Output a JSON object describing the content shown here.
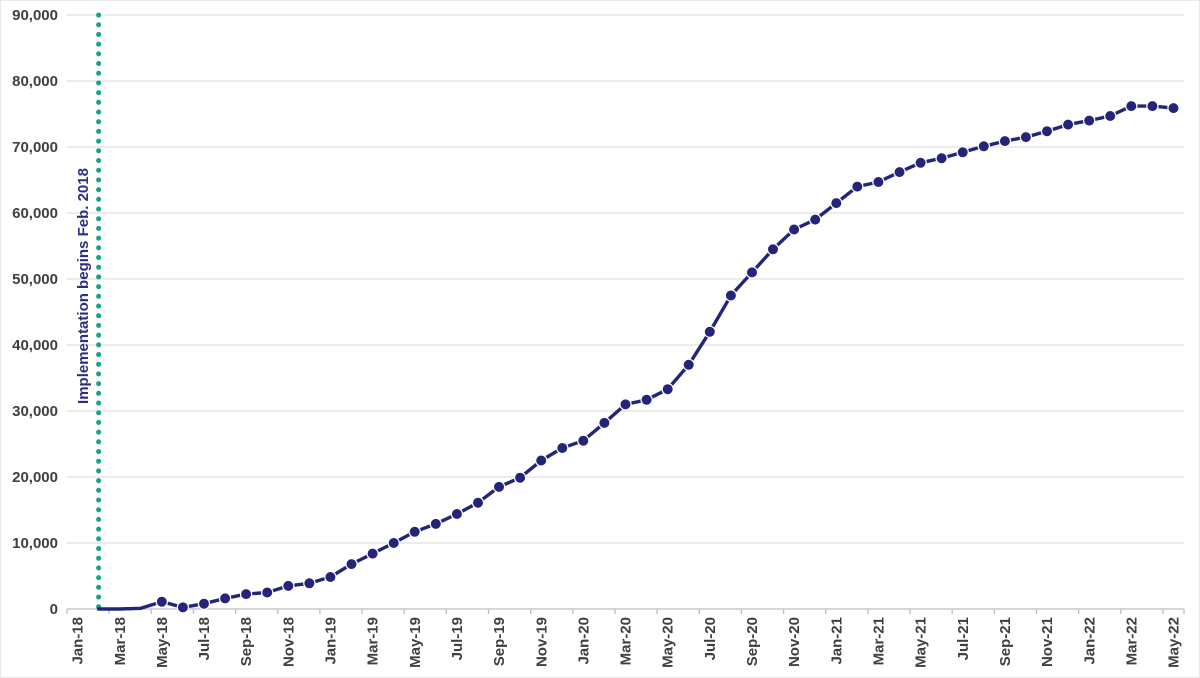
{
  "chart_data": {
    "type": "line",
    "title": "",
    "legend": "none",
    "grid": "horizontal",
    "ylim": [
      0,
      90000
    ],
    "y_tick_step": 10000,
    "y_tick_labels": [
      "0",
      "10,000",
      "20,000",
      "30,000",
      "40,000",
      "50,000",
      "60,000",
      "70,000",
      "80,000",
      "90,000"
    ],
    "x": [
      "Jan-18",
      "Feb-18",
      "Mar-18",
      "Apr-18",
      "May-18",
      "Jun-18",
      "Jul-18",
      "Aug-18",
      "Sep-18",
      "Oct-18",
      "Nov-18",
      "Dec-18",
      "Jan-19",
      "Feb-19",
      "Mar-19",
      "Apr-19",
      "May-19",
      "Jun-19",
      "Jul-19",
      "Aug-19",
      "Sep-19",
      "Oct-19",
      "Nov-19",
      "Dec-19",
      "Jan-20",
      "Feb-20",
      "Mar-20",
      "Apr-20",
      "May-20",
      "Jun-20",
      "Jul-20",
      "Aug-20",
      "Sep-20",
      "Oct-20",
      "Nov-20",
      "Dec-20",
      "Jan-21",
      "Feb-21",
      "Mar-21",
      "Apr-21",
      "May-21",
      "Jun-21",
      "Jul-21",
      "Aug-21",
      "Sep-21",
      "Oct-21",
      "Nov-21",
      "Dec-21",
      "Jan-22",
      "Feb-22",
      "Mar-22",
      "Apr-22",
      "May-22"
    ],
    "x_tick_labels": [
      "Jan-18",
      "Mar-18",
      "May-18",
      "Jul-18",
      "Sep-18",
      "Nov-18",
      "Jan-19",
      "Mar-19",
      "May-19",
      "Jul-19",
      "Sep-19",
      "Nov-19",
      "Jan-20",
      "Mar-20",
      "May-20",
      "Jul-20",
      "Sep-20",
      "Nov-20",
      "Jan-21",
      "Mar-21",
      "May-21",
      "Jul-21",
      "Sep-21",
      "Nov-21",
      "Jan-22",
      "Mar-22",
      "May-22"
    ],
    "values": [
      null,
      0,
      0,
      100,
      1100,
      250,
      800,
      1600,
      2250,
      2500,
      3500,
      3900,
      4850,
      6800,
      8400,
      10000,
      11700,
      12900,
      14400,
      16100,
      18500,
      19900,
      22500,
      24400,
      25500,
      28200,
      31000,
      31700,
      33300,
      37000,
      42000,
      47500,
      51000,
      54500,
      57500,
      59000,
      61500,
      64000,
      64700,
      66200,
      67600,
      68300,
      69200,
      70100,
      70900,
      71500,
      72400,
      73400,
      74000,
      74700,
      76200,
      76200,
      75900
    ],
    "marker_start_index": 4,
    "annotation": {
      "text": "Implementation begins Feb. 2018",
      "at_x": "Feb-18",
      "x_index": 1,
      "style": "vertical-dotted-line"
    }
  },
  "colors": {
    "series_line": "#242478",
    "marker_fill": "#242478",
    "marker_border": "#ffffff",
    "annotation_line": "#17a28e",
    "annotation_text": "#2b2e83",
    "gridline": "#d9d9d9",
    "axis_line": "#bfbfbf",
    "axis_label": "#3f3f3f",
    "background": "#ffffff"
  }
}
